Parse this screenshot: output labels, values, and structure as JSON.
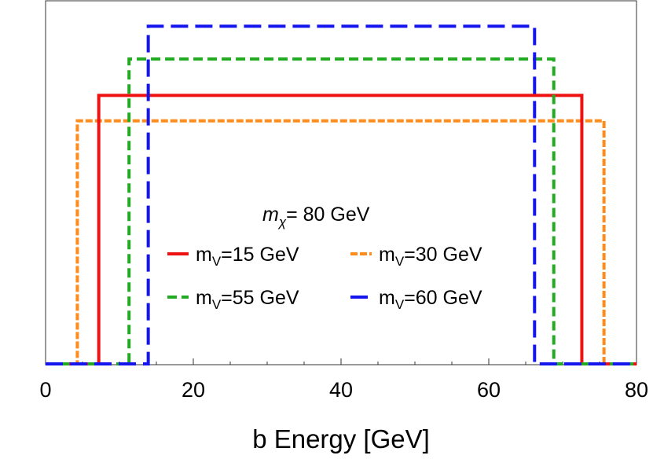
{
  "chart_data": {
    "type": "line",
    "title": "",
    "xlabel": "b Energy [GeV]",
    "ylabel": "",
    "xlim": [
      0,
      80
    ],
    "ylim": [
      0,
      1.0
    ],
    "xticks": [
      0,
      20,
      40,
      60,
      80
    ],
    "xtick_labels": [
      "0",
      "20",
      "40",
      "60",
      "80"
    ],
    "annotation": {
      "symbol": "m",
      "subscript": "χ",
      "text": "= 80 GeV"
    },
    "legend_position": "center",
    "series": [
      {
        "name": "mV=15 GeV",
        "label_base": "m",
        "label_sub": "V",
        "label_rest": "=15 GeV",
        "color": "#ee1111",
        "style": "solid",
        "x_min": 7.2,
        "x_max": 72.6,
        "height": 0.74
      },
      {
        "name": "mV=30 GeV",
        "label_base": "m",
        "label_sub": "V",
        "label_rest": "=30 GeV",
        "color": "#ff8c1a",
        "style": "dotted-dash",
        "x_min": 4.3,
        "x_max": 75.6,
        "height": 0.67
      },
      {
        "name": "mV=55 GeV",
        "label_base": "m",
        "label_sub": "V",
        "label_rest": "=55 GeV",
        "color": "#22aa22",
        "style": "dashed",
        "x_min": 11.3,
        "x_max": 68.8,
        "height": 0.84
      },
      {
        "name": "mV=60 GeV",
        "label_base": "m",
        "label_sub": "V",
        "label_rest": "=60 GeV",
        "color": "#1515ee",
        "style": "long-dashed",
        "x_min": 13.9,
        "x_max": 66.2,
        "height": 0.93
      }
    ]
  }
}
